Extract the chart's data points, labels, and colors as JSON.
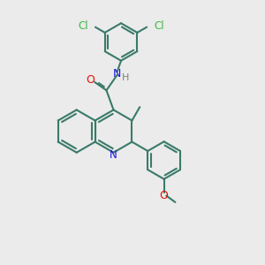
{
  "bg_color": "#ebebeb",
  "bond_color": "#3a7a6a",
  "cl_color": "#3cb843",
  "n_color": "#1515e0",
  "o_color": "#e81000",
  "h_color": "#808080",
  "lw": 1.5,
  "figsize": [
    3.0,
    3.0
  ],
  "dpi": 100,
  "xlim": [
    0,
    10
  ],
  "ylim": [
    0,
    10
  ]
}
